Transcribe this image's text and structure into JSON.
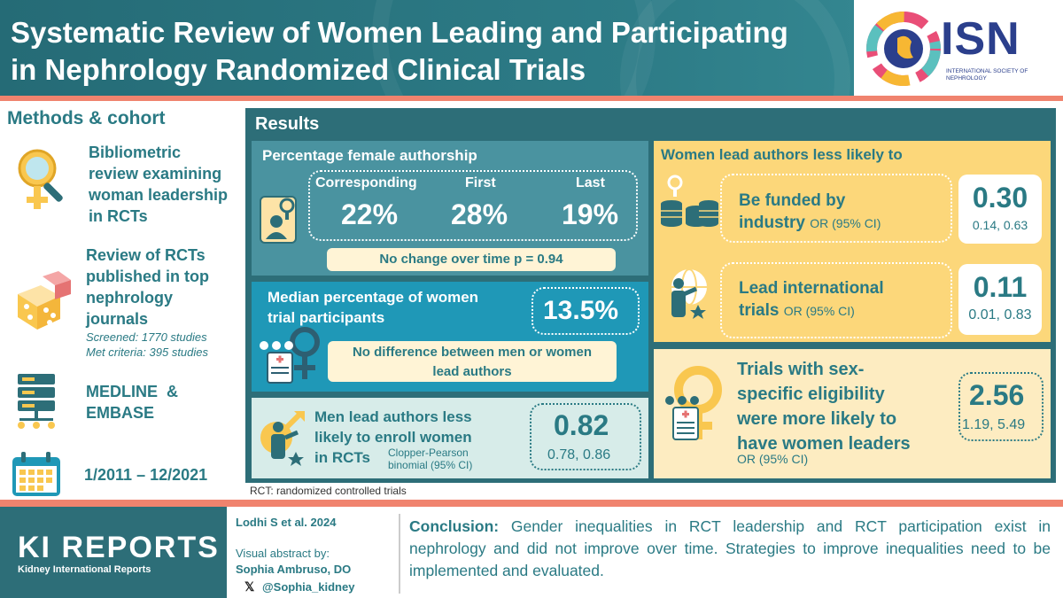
{
  "header": {
    "title_line1": "Systematic Review of Women Leading and Participating",
    "title_line2": "in Nephrology Randomized Clinical Trials",
    "logo_text": "ISN",
    "logo_sub": "INTERNATIONAL SOCIETY OF NEPHROLOGY"
  },
  "methods": {
    "title": "Methods & cohort",
    "item1": [
      "Bibliometric",
      "review examining",
      "woman leadership",
      "in RCTs"
    ],
    "item2": [
      "Review of RCTs",
      "published in top",
      "nephrology",
      "journals"
    ],
    "screened": "Screened: 1770 studies",
    "met": "Met criteria: 395 studies",
    "item3": [
      "MEDLINE  &",
      "EMBASE"
    ],
    "dates": "1/2011 – 12/2021"
  },
  "results": {
    "title": "Results",
    "female": {
      "title": "Percentage female authorship",
      "labels": [
        "Corresponding",
        "First",
        "Last"
      ],
      "values": [
        "22%",
        "28%",
        "19%"
      ],
      "note": "No change over time p = 0.94"
    },
    "median": {
      "title_line1": "Median percentage of women",
      "title_line2": "trial participants",
      "value": "13.5%",
      "note_line1": "No difference between men or women",
      "note_line2": "lead authors"
    },
    "men": {
      "line1": "Men lead authors less",
      "line2": "likely to enroll women",
      "line3": "in RCTs",
      "method_line1": "Clopper-Pearson",
      "method_line2": "binomial (95% CI)",
      "value": "0.82",
      "ci": "0.78, 0.86"
    },
    "women": {
      "title": "Women lead authors less likely to",
      "funded_line1": "Be funded by",
      "funded_line2": "industry",
      "funded_or": "OR (95% CI)",
      "funded_value": "0.30",
      "funded_ci": "0.14, 0.63",
      "intl_line1": "Lead international",
      "intl_line2": "trials",
      "intl_or": "OR (95% CI)",
      "intl_value": "0.11",
      "intl_ci": "0.01, 0.83"
    },
    "trials": {
      "line1": "Trials with sex-",
      "line2": "specific eligibility",
      "line3": "were more likely to",
      "line4": "have women leaders",
      "or": "OR (95% CI)",
      "value": "2.56",
      "ci": "1.19, 5.49"
    },
    "footnote": "RCT: randomized controlled trials"
  },
  "footer": {
    "journal": "KI REPORTS",
    "journal_sub": "Kidney International Reports",
    "citation": "Lodhi S et al. 2024",
    "va_label": "Visual abstract by:",
    "va_name": "Sophia Ambruso, DO",
    "va_handle": "@Sophia_kidney",
    "conclusion_label": "Conclusion:",
    "conclusion_text": " Gender inequalities in RCT leadership and RCT participation exist in nephrology and did not improve over time. Strategies to improve inequalities need to be implemented  and evaluated."
  },
  "colors": {
    "teal": "#2a7a84",
    "header": "#2d7c87",
    "coral": "#f0836e",
    "yellow": "#fcd77a",
    "blue": "#1f98b7"
  },
  "icons": [
    "search-female-icon",
    "dice-icon",
    "database-icon",
    "calendar-icon",
    "author-card-icon",
    "participants-icon",
    "male-presenter-icon",
    "coins-female-icon",
    "globe-presenter-icon",
    "clipboard-female-icon",
    "x-logo-icon",
    "isn-logo-icon"
  ]
}
